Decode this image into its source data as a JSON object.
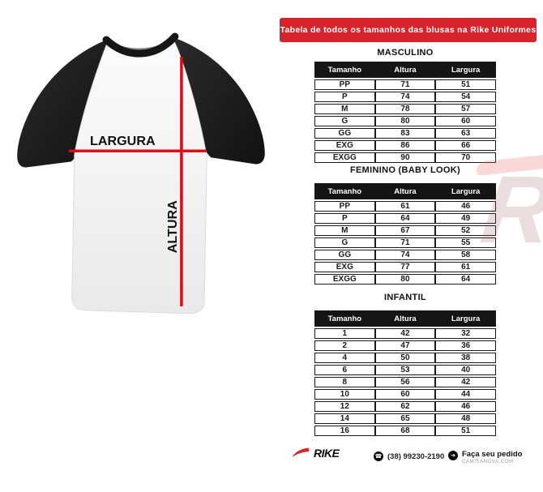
{
  "banner": {
    "text": "Tabela de todos os tamanhos das blusas na Rike Uniformes",
    "bg_color": "#d9232b"
  },
  "diagram": {
    "width_label": "LARGURA",
    "height_label": "ALTURA",
    "line_color": "#e30613"
  },
  "tables": [
    {
      "title": "MASCULINO",
      "headers": [
        "Tamanho",
        "Altura",
        "Largura"
      ],
      "rows": [
        [
          "PP",
          "71",
          "51"
        ],
        [
          "P",
          "74",
          "54"
        ],
        [
          "M",
          "78",
          "57"
        ],
        [
          "G",
          "80",
          "60"
        ],
        [
          "GG",
          "83",
          "63"
        ],
        [
          "EXG",
          "86",
          "66"
        ],
        [
          "EXGG",
          "90",
          "70"
        ]
      ]
    },
    {
      "title": "FEMININO (BABY LOOK)",
      "headers": [
        "Tamanho",
        "Altura",
        "Largura"
      ],
      "rows": [
        [
          "PP",
          "61",
          "46"
        ],
        [
          "P",
          "64",
          "49"
        ],
        [
          "M",
          "67",
          "52"
        ],
        [
          "G",
          "71",
          "55"
        ],
        [
          "GG",
          "74",
          "58"
        ],
        [
          "EXG",
          "77",
          "61"
        ],
        [
          "EXGG",
          "80",
          "64"
        ]
      ]
    },
    {
      "title": "INFANTIL",
      "headers": [
        "Tamanho",
        "Altura",
        "Largura"
      ],
      "rows": [
        [
          "1",
          "42",
          "32"
        ],
        [
          "2",
          "47",
          "36"
        ],
        [
          "4",
          "50",
          "38"
        ],
        [
          "6",
          "53",
          "40"
        ],
        [
          "8",
          "56",
          "42"
        ],
        [
          "10",
          "60",
          "44"
        ],
        [
          "12",
          "62",
          "46"
        ],
        [
          "14",
          "65",
          "48"
        ],
        [
          "16",
          "68",
          "51"
        ]
      ]
    }
  ],
  "footer": {
    "brand": "RIKE",
    "phone": "(38) 99230-2190",
    "phone_icon": "phone",
    "cta": "Faça seu pedido",
    "cta_icon": "arrow-right",
    "site": "CAMISANOVA.COM"
  },
  "watermark": {
    "text": "RIKE"
  }
}
